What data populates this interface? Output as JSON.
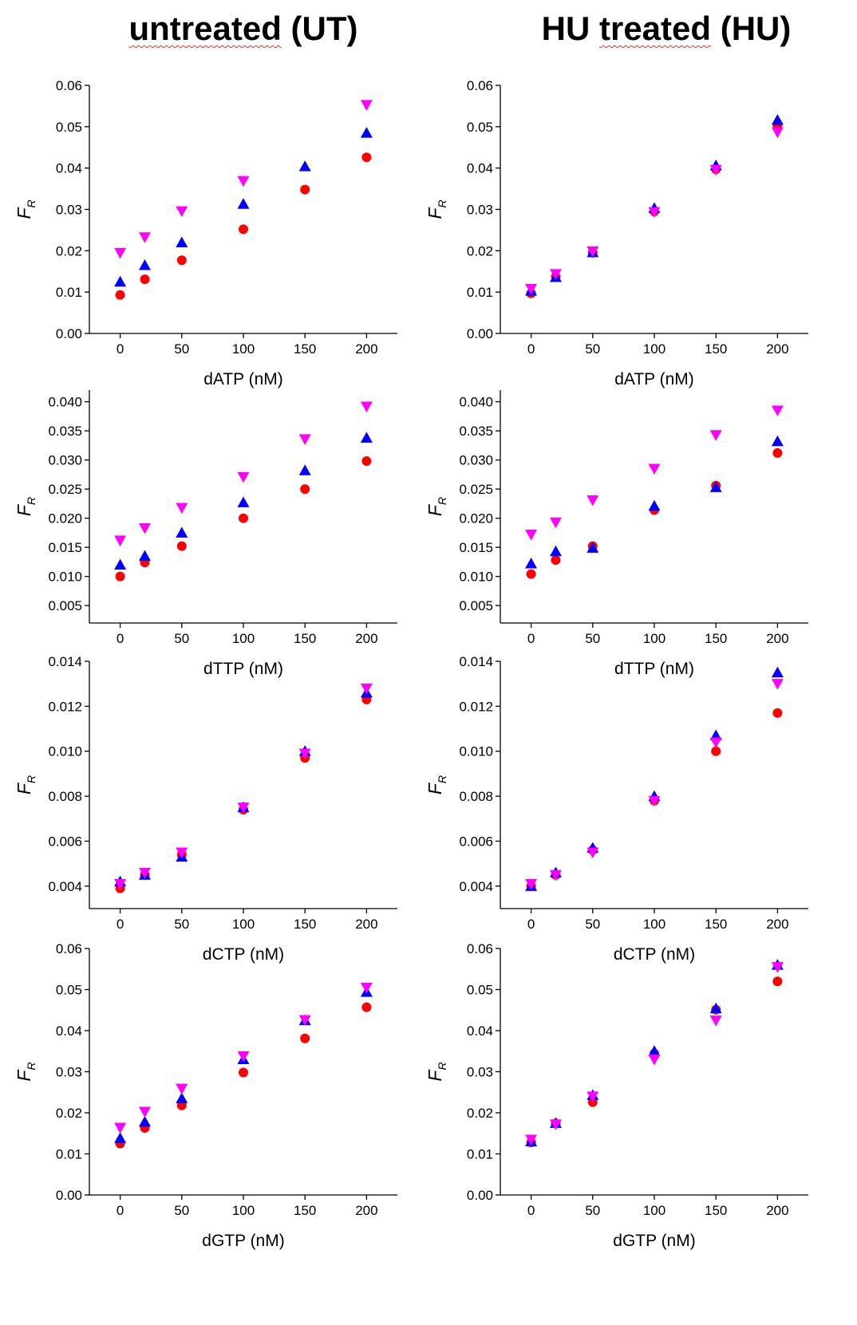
{
  "titles": {
    "left": {
      "underlined": "untreated",
      "rest": " (UT)"
    },
    "right": {
      "prefix": "HU ",
      "underlined": "treated",
      "rest": " (HU)"
    }
  },
  "ylabel_main": "F",
  "ylabel_sub": "R",
  "marker_colors": {
    "circle": "#ff0000",
    "triangle_up": "#0000ff",
    "triangle_down": "#ff00ff"
  },
  "chart_data": [
    {
      "type": "scatter",
      "panel": "UT-dATP",
      "xlabel": "dATP (nM)",
      "ylabel": "F_R",
      "xlim": [
        -25,
        225
      ],
      "ylim": [
        0,
        0.06
      ],
      "xticks": [
        0,
        50,
        100,
        150,
        200
      ],
      "yticks": [
        0,
        0.01,
        0.02,
        0.03,
        0.04,
        0.05,
        0.06
      ],
      "ytick_labels": [
        "0.00",
        "0.01",
        "0.02",
        "0.03",
        "0.04",
        "0.05",
        "0.06"
      ],
      "series": [
        {
          "marker": "circle",
          "color": "#ff0000",
          "points": [
            [
              0,
              0.0093
            ],
            [
              20,
              0.0131
            ],
            [
              50,
              0.0177
            ],
            [
              100,
              0.0252
            ],
            [
              150,
              0.0348
            ],
            [
              200,
              0.0426
            ]
          ]
        },
        {
          "marker": "triangle_up",
          "color": "#0000ff",
          "points": [
            [
              0,
              0.0125
            ],
            [
              20,
              0.0165
            ],
            [
              50,
              0.022
            ],
            [
              100,
              0.0313
            ],
            [
              150,
              0.0404
            ],
            [
              200,
              0.0485
            ]
          ]
        },
        {
          "marker": "triangle_down",
          "color": "#ff00ff",
          "points": [
            [
              0,
              0.0195
            ],
            [
              20,
              0.0233
            ],
            [
              50,
              0.0296
            ],
            [
              100,
              0.0369
            ],
            [
              200,
              0.0553
            ]
          ]
        }
      ]
    },
    {
      "type": "scatter",
      "panel": "HU-dATP",
      "xlabel": "dATP (nM)",
      "ylabel": "F_R",
      "xlim": [
        -25,
        225
      ],
      "ylim": [
        0,
        0.06
      ],
      "xticks": [
        0,
        50,
        100,
        150,
        200
      ],
      "yticks": [
        0,
        0.01,
        0.02,
        0.03,
        0.04,
        0.05,
        0.06
      ],
      "ytick_labels": [
        "0.00",
        "0.01",
        "0.02",
        "0.03",
        "0.04",
        "0.05",
        "0.06"
      ],
      "series": [
        {
          "marker": "circle",
          "color": "#ff0000",
          "points": [
            [
              0,
              0.0097
            ],
            [
              20,
              0.0137
            ],
            [
              50,
              0.0195
            ],
            [
              100,
              0.0295
            ],
            [
              150,
              0.0397
            ],
            [
              200,
              0.0503
            ]
          ]
        },
        {
          "marker": "triangle_up",
          "color": "#0000ff",
          "points": [
            [
              0,
              0.0103
            ],
            [
              20,
              0.0136
            ],
            [
              50,
              0.0196
            ],
            [
              100,
              0.0303
            ],
            [
              150,
              0.0406
            ],
            [
              200,
              0.0516
            ]
          ]
        },
        {
          "marker": "triangle_down",
          "color": "#ff00ff",
          "points": [
            [
              0,
              0.0108
            ],
            [
              20,
              0.0144
            ],
            [
              50,
              0.0199
            ],
            [
              100,
              0.0294
            ],
            [
              150,
              0.0396
            ],
            [
              200,
              0.0487
            ]
          ]
        }
      ]
    },
    {
      "type": "scatter",
      "panel": "UT-dTTP",
      "xlabel": "dTTP (nM)",
      "ylabel": "F_R",
      "xlim": [
        -25,
        225
      ],
      "ylim": [
        0.002,
        0.042
      ],
      "xticks": [
        0,
        50,
        100,
        150,
        200
      ],
      "yticks": [
        0.005,
        0.01,
        0.015,
        0.02,
        0.025,
        0.03,
        0.035,
        0.04
      ],
      "ytick_labels": [
        "0.005",
        "0.010",
        "0.015",
        "0.020",
        "0.025",
        "0.030",
        "0.035",
        "0.040"
      ],
      "series": [
        {
          "marker": "circle",
          "color": "#ff0000",
          "points": [
            [
              0,
              0.01
            ],
            [
              20,
              0.0124
            ],
            [
              50,
              0.0152
            ],
            [
              100,
              0.02
            ],
            [
              150,
              0.025
            ],
            [
              200,
              0.0298
            ]
          ]
        },
        {
          "marker": "triangle_up",
          "color": "#0000ff",
          "points": [
            [
              0,
              0.012
            ],
            [
              20,
              0.0135
            ],
            [
              50,
              0.0175
            ],
            [
              100,
              0.0227
            ],
            [
              150,
              0.0282
            ],
            [
              200,
              0.0338
            ]
          ]
        },
        {
          "marker": "triangle_down",
          "color": "#ff00ff",
          "points": [
            [
              0,
              0.0162
            ],
            [
              20,
              0.0183
            ],
            [
              50,
              0.0218
            ],
            [
              100,
              0.0271
            ],
            [
              150,
              0.0336
            ],
            [
              200,
              0.0392
            ]
          ]
        }
      ]
    },
    {
      "type": "scatter",
      "panel": "HU-dTTP",
      "xlabel": "dTTP (nM)",
      "ylabel": "F_R",
      "xlim": [
        -25,
        225
      ],
      "ylim": [
        0.002,
        0.042
      ],
      "xticks": [
        0,
        50,
        100,
        150,
        200
      ],
      "yticks": [
        0.005,
        0.01,
        0.015,
        0.02,
        0.025,
        0.03,
        0.035,
        0.04
      ],
      "ytick_labels": [
        "0.005",
        "0.010",
        "0.015",
        "0.020",
        "0.025",
        "0.030",
        "0.035",
        "0.040"
      ],
      "series": [
        {
          "marker": "circle",
          "color": "#ff0000",
          "points": [
            [
              0,
              0.0104
            ],
            [
              20,
              0.0128
            ],
            [
              50,
              0.0152
            ],
            [
              100,
              0.0214
            ],
            [
              150,
              0.0256
            ],
            [
              200,
              0.0312
            ]
          ]
        },
        {
          "marker": "triangle_up",
          "color": "#0000ff",
          "points": [
            [
              0,
              0.0122
            ],
            [
              20,
              0.0143
            ],
            [
              50,
              0.0149
            ],
            [
              100,
              0.0221
            ],
            [
              150,
              0.0253
            ],
            [
              200,
              0.0332
            ]
          ]
        },
        {
          "marker": "triangle_down",
          "color": "#ff00ff",
          "points": [
            [
              0,
              0.0172
            ],
            [
              20,
              0.0193
            ],
            [
              50,
              0.0231
            ],
            [
              100,
              0.0285
            ],
            [
              150,
              0.0343
            ],
            [
              200,
              0.0385
            ]
          ]
        }
      ]
    },
    {
      "type": "scatter",
      "panel": "UT-dCTP",
      "xlabel": "dCTP (nM)",
      "ylabel": "F_R",
      "xlim": [
        -25,
        225
      ],
      "ylim": [
        0.003,
        0.014
      ],
      "xticks": [
        0,
        50,
        100,
        150,
        200
      ],
      "yticks": [
        0.004,
        0.006,
        0.008,
        0.01,
        0.012,
        0.014
      ],
      "ytick_labels": [
        "0.004",
        "0.006",
        "0.008",
        "0.010",
        "0.012",
        "0.014"
      ],
      "series": [
        {
          "marker": "circle",
          "color": "#ff0000",
          "points": [
            [
              0,
              0.0039
            ],
            [
              20,
              0.0045
            ],
            [
              50,
              0.0054
            ],
            [
              100,
              0.0074
            ],
            [
              150,
              0.0097
            ],
            [
              200,
              0.0123
            ]
          ]
        },
        {
          "marker": "triangle_up",
          "color": "#0000ff",
          "points": [
            [
              0,
              0.0042
            ],
            [
              20,
              0.0045
            ],
            [
              50,
              0.0053
            ],
            [
              100,
              0.0075
            ],
            [
              150,
              0.01
            ],
            [
              200,
              0.0126
            ]
          ]
        },
        {
          "marker": "triangle_down",
          "color": "#ff00ff",
          "points": [
            [
              0,
              0.0041
            ],
            [
              20,
              0.0046
            ],
            [
              50,
              0.0055
            ],
            [
              100,
              0.0075
            ],
            [
              150,
              0.0099
            ],
            [
              200,
              0.0128
            ]
          ]
        }
      ]
    },
    {
      "type": "scatter",
      "panel": "HU-dCTP",
      "xlabel": "dCTP (nM)",
      "ylabel": "F_R",
      "xlim": [
        -25,
        225
      ],
      "ylim": [
        0.003,
        0.014
      ],
      "xticks": [
        0,
        50,
        100,
        150,
        200
      ],
      "yticks": [
        0.004,
        0.006,
        0.008,
        0.01,
        0.012,
        0.014
      ],
      "ytick_labels": [
        "0.004",
        "0.006",
        "0.008",
        "0.010",
        "0.012",
        "0.014"
      ],
      "series": [
        {
          "marker": "circle",
          "color": "#ff0000",
          "points": [
            [
              0,
              0.004
            ],
            [
              20,
              0.0045
            ],
            [
              50,
              0.0056
            ],
            [
              100,
              0.0078
            ],
            [
              150,
              0.01
            ],
            [
              200,
              0.0117
            ]
          ]
        },
        {
          "marker": "triangle_up",
          "color": "#0000ff",
          "points": [
            [
              0,
              0.004
            ],
            [
              20,
              0.0046
            ],
            [
              50,
              0.0057
            ],
            [
              100,
              0.008
            ],
            [
              150,
              0.0107
            ],
            [
              200,
              0.0135
            ]
          ]
        },
        {
          "marker": "triangle_down",
          "color": "#ff00ff",
          "points": [
            [
              0,
              0.0041
            ],
            [
              20,
              0.0045
            ],
            [
              50,
              0.0055
            ],
            [
              100,
              0.0078
            ],
            [
              150,
              0.0104
            ],
            [
              200,
              0.013
            ]
          ]
        }
      ]
    },
    {
      "type": "scatter",
      "panel": "UT-dGTP",
      "xlabel": "dGTP (nM)",
      "ylabel": "F_R",
      "xlim": [
        -25,
        225
      ],
      "ylim": [
        0,
        0.06
      ],
      "xticks": [
        0,
        50,
        100,
        150,
        200
      ],
      "yticks": [
        0,
        0.01,
        0.02,
        0.03,
        0.04,
        0.05,
        0.06
      ],
      "ytick_labels": [
        "0.00",
        "0.01",
        "0.02",
        "0.03",
        "0.04",
        "0.05",
        "0.06"
      ],
      "series": [
        {
          "marker": "circle",
          "color": "#ff0000",
          "points": [
            [
              0,
              0.0125
            ],
            [
              20,
              0.0163
            ],
            [
              50,
              0.0218
            ],
            [
              100,
              0.0298
            ],
            [
              150,
              0.0381
            ],
            [
              200,
              0.0457
            ]
          ]
        },
        {
          "marker": "triangle_up",
          "color": "#0000ff",
          "points": [
            [
              0,
              0.0138
            ],
            [
              20,
              0.0178
            ],
            [
              50,
              0.0235
            ],
            [
              100,
              0.033
            ],
            [
              150,
              0.0425
            ],
            [
              200,
              0.0494
            ]
          ]
        },
        {
          "marker": "triangle_down",
          "color": "#ff00ff",
          "points": [
            [
              0,
              0.0164
            ],
            [
              20,
              0.0203
            ],
            [
              50,
              0.0259
            ],
            [
              100,
              0.0338
            ],
            [
              150,
              0.0426
            ],
            [
              200,
              0.0505
            ]
          ]
        }
      ]
    },
    {
      "type": "scatter",
      "panel": "HU-dGTP",
      "xlabel": "dGTP (nM)",
      "ylabel": "F_R",
      "xlim": [
        -25,
        225
      ],
      "ylim": [
        0,
        0.06
      ],
      "xticks": [
        0,
        50,
        100,
        150,
        200
      ],
      "yticks": [
        0,
        0.01,
        0.02,
        0.03,
        0.04,
        0.05,
        0.06
      ],
      "ytick_labels": [
        "0.00",
        "0.01",
        "0.02",
        "0.03",
        "0.04",
        "0.05",
        "0.06"
      ],
      "series": [
        {
          "marker": "circle",
          "color": "#ff0000",
          "points": [
            [
              0,
              0.0128
            ],
            [
              20,
              0.0174
            ],
            [
              50,
              0.0226
            ],
            [
              100,
              0.0344
            ],
            [
              150,
              0.0451
            ],
            [
              200,
              0.052
            ]
          ]
        },
        {
          "marker": "triangle_up",
          "color": "#0000ff",
          "points": [
            [
              0,
              0.013
            ],
            [
              20,
              0.0175
            ],
            [
              50,
              0.0243
            ],
            [
              100,
              0.035
            ],
            [
              150,
              0.0454
            ],
            [
              200,
              0.056
            ]
          ]
        },
        {
          "marker": "triangle_down",
          "color": "#ff00ff",
          "points": [
            [
              0,
              0.0135
            ],
            [
              20,
              0.0172
            ],
            [
              50,
              0.024
            ],
            [
              100,
              0.033
            ],
            [
              150,
              0.0425
            ],
            [
              200,
              0.0555
            ]
          ]
        }
      ]
    }
  ]
}
